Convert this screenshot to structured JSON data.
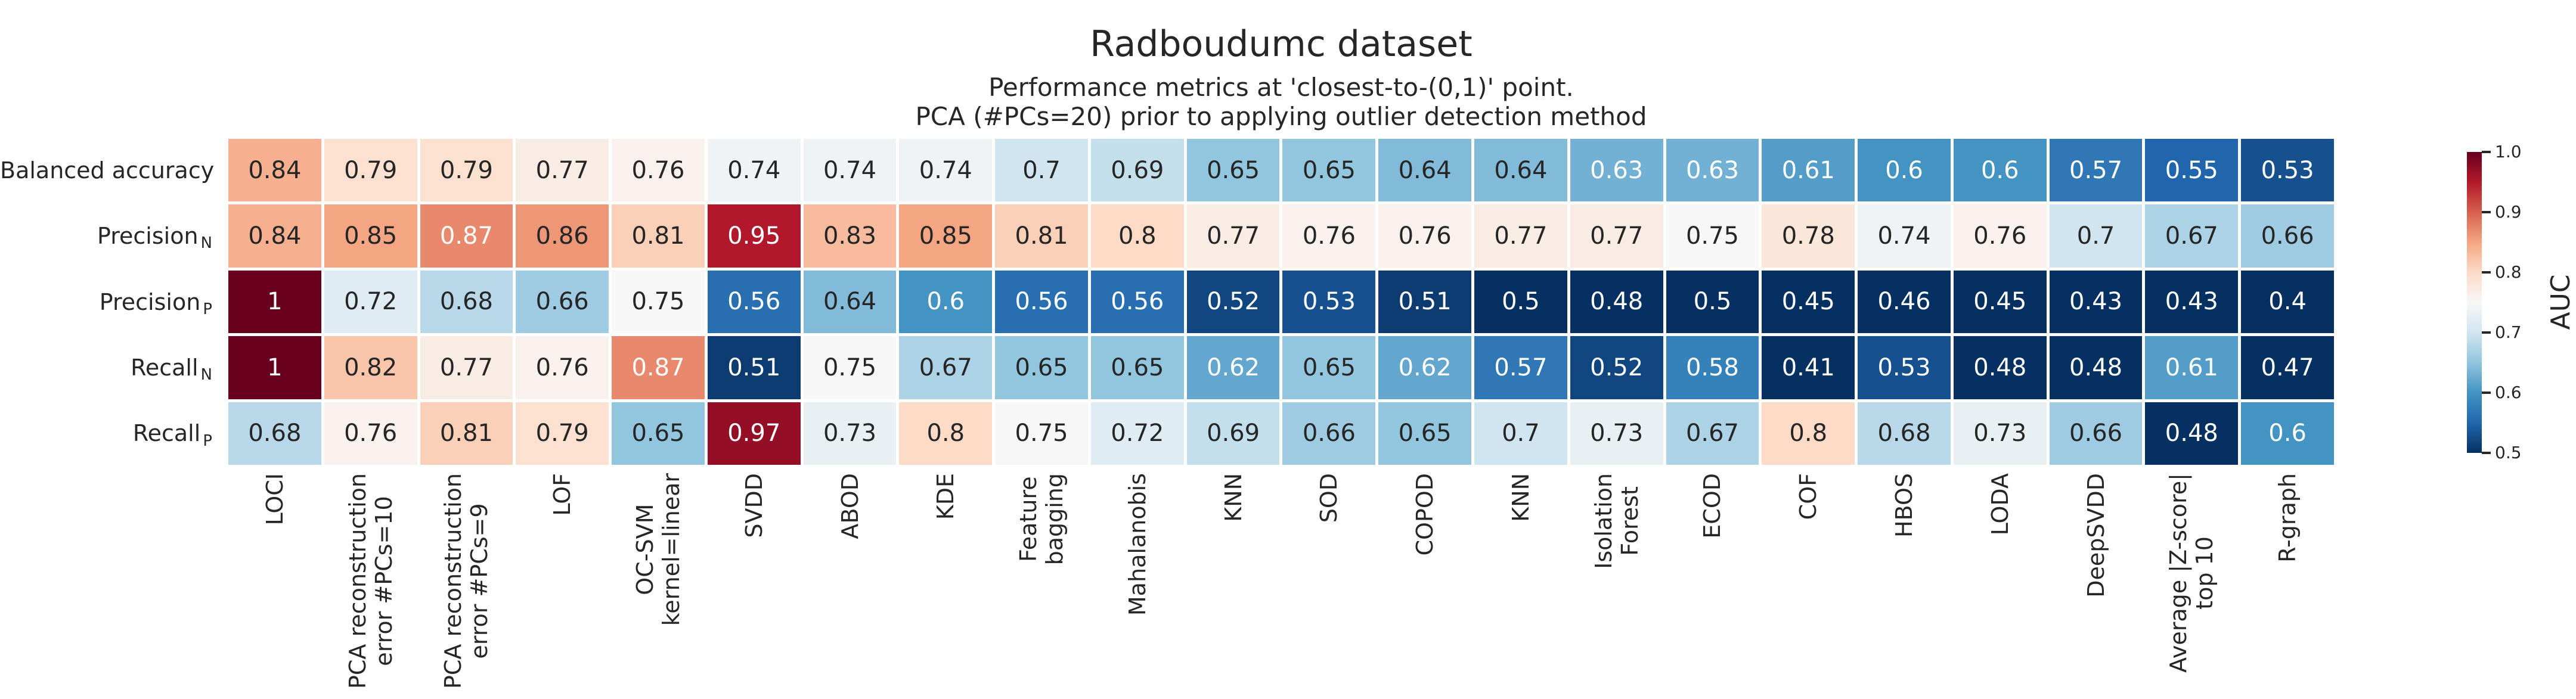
{
  "chart_data": {
    "type": "heatmap",
    "title": "Radboudumc dataset",
    "subtitle_lines": [
      "Performance metrics at 'closest-to-(0,1)' point.",
      "PCA (#PCs=20) prior to applying outlier detection method"
    ],
    "rows": [
      {
        "label": "Balanced accuracy",
        "subscript": ""
      },
      {
        "label": "Precision",
        "subscript": "N"
      },
      {
        "label": "Precision",
        "subscript": "P"
      },
      {
        "label": "Recall",
        "subscript": "N"
      },
      {
        "label": "Recall",
        "subscript": "P"
      }
    ],
    "columns": [
      [
        "LOCI"
      ],
      [
        "PCA reconstruction",
        "error #PCs=10"
      ],
      [
        "PCA reconstruction",
        "error #PCs=9"
      ],
      [
        "LOF"
      ],
      [
        "OC-SVM",
        "kernel=linear"
      ],
      [
        "SVDD"
      ],
      [
        "ABOD"
      ],
      [
        "KDE"
      ],
      [
        "Feature",
        "bagging"
      ],
      [
        "Mahalanobis"
      ],
      [
        "KNN"
      ],
      [
        "SOD"
      ],
      [
        "COPOD"
      ],
      [
        "KNN"
      ],
      [
        "Isolation",
        "Forest"
      ],
      [
        "ECOD"
      ],
      [
        "COF"
      ],
      [
        "HBOS"
      ],
      [
        "LODA"
      ],
      [
        "DeepSVDD"
      ],
      [
        "Average |Z-score|",
        "top 10"
      ],
      [
        "R-graph"
      ]
    ],
    "values": [
      [
        0.84,
        0.79,
        0.79,
        0.77,
        0.76,
        0.74,
        0.74,
        0.74,
        0.7,
        0.69,
        0.65,
        0.65,
        0.64,
        0.64,
        0.63,
        0.63,
        0.61,
        0.6,
        0.6,
        0.57,
        0.55,
        0.53
      ],
      [
        0.84,
        0.85,
        0.87,
        0.86,
        0.81,
        0.95,
        0.83,
        0.85,
        0.81,
        0.8,
        0.77,
        0.76,
        0.76,
        0.77,
        0.77,
        0.75,
        0.78,
        0.74,
        0.76,
        0.7,
        0.67,
        0.66
      ],
      [
        1,
        0.72,
        0.68,
        0.66,
        0.75,
        0.56,
        0.64,
        0.6,
        0.56,
        0.56,
        0.52,
        0.53,
        0.51,
        0.5,
        0.48,
        0.5,
        0.45,
        0.46,
        0.45,
        0.43,
        0.43,
        0.4
      ],
      [
        1,
        0.82,
        0.77,
        0.76,
        0.87,
        0.51,
        0.75,
        0.67,
        0.65,
        0.65,
        0.62,
        0.65,
        0.62,
        0.57,
        0.52,
        0.58,
        0.41,
        0.53,
        0.48,
        0.48,
        0.61,
        0.47
      ],
      [
        0.68,
        0.76,
        0.81,
        0.79,
        0.65,
        0.97,
        0.73,
        0.8,
        0.75,
        0.72,
        0.69,
        0.66,
        0.65,
        0.7,
        0.73,
        0.67,
        0.8,
        0.68,
        0.73,
        0.66,
        0.48,
        0.6
      ]
    ],
    "colormap": "RdBu_r",
    "colormap_anchors": [
      "#053061",
      "#2166ac",
      "#4393c3",
      "#92c5de",
      "#d1e5f0",
      "#f7f7f7",
      "#fddbc7",
      "#f4a582",
      "#d6604d",
      "#b2182b",
      "#67001f"
    ],
    "vmin": 0.5,
    "vmax": 1.0,
    "legend_position": "right",
    "colorbar": {
      "label": "AUC",
      "tick_labels": [
        "1.0",
        "0.9",
        "0.8",
        "0.7",
        "0.6",
        "0.5"
      ],
      "tick_values": [
        1.0,
        0.9,
        0.8,
        0.7,
        0.6,
        0.5
      ]
    },
    "colors": {
      "annotation_dark": "#262626",
      "annotation_light": "#ffffff",
      "background": "#ffffff"
    }
  }
}
